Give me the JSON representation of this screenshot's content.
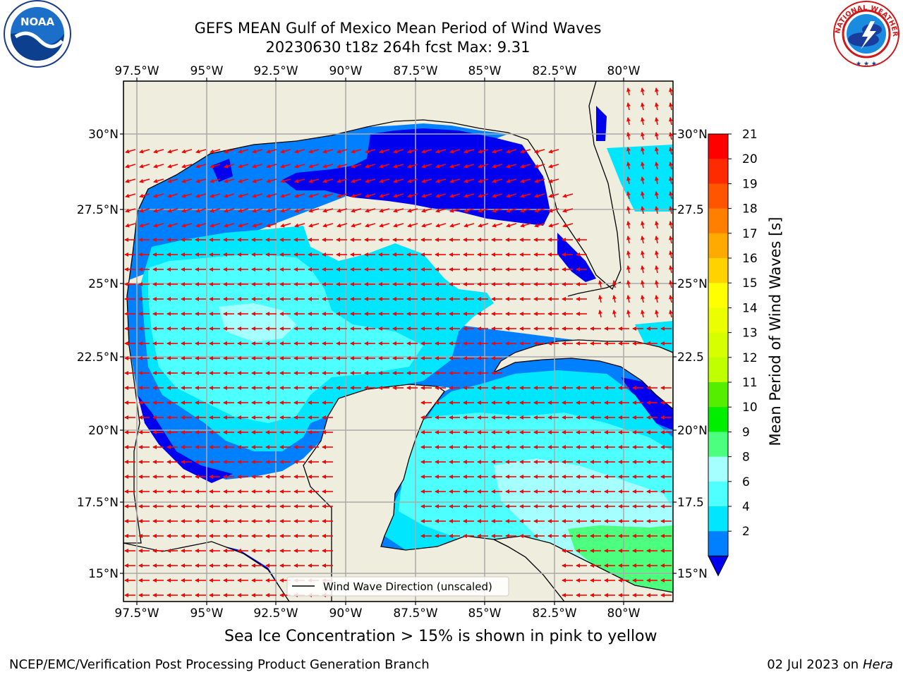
{
  "title": {
    "line1": "GEFS MEAN Gulf of Mexico Mean Period of Wind Waves",
    "line2": "20230630 t18z 264h fcst   Max: 9.31"
  },
  "map": {
    "lon_labels": [
      "97.5°W",
      "95°W",
      "92.5°W",
      "90°W",
      "87.5°W",
      "85°W",
      "82.5°W",
      "80°W"
    ],
    "lat_labels_left": [
      "30°N",
      "27.5°N",
      "25°N",
      "22.5°N",
      "20°N",
      "17.5°N",
      "15°N"
    ],
    "lat_labels_right": [
      "30°N",
      "27.5",
      "25°N",
      "22.5",
      "20°N",
      "17.5",
      "15°N"
    ],
    "legend_label": "Wind Wave Direction (unscaled)",
    "colors": {
      "land": "#efedde",
      "ocean_2_4": "#0080ff",
      "ocean_4_6": "#00e6ff",
      "ocean_6_8": "#4dffff",
      "ocean_8_9": "#a6ffff",
      "ocean_9_10": "#4cff7f",
      "ocean_lt2": "#0000ee",
      "arrow": "#ff0000"
    }
  },
  "colorbar": {
    "label": "Mean Period of Wind Waves [s]",
    "ticks": [
      "21",
      "20",
      "19",
      "18",
      "17",
      "16",
      "15",
      "14",
      "13",
      "12",
      "11",
      "10",
      "9",
      "8",
      "6",
      "4",
      "2"
    ],
    "colors": [
      "#ff0000",
      "#ff2a00",
      "#ff5500",
      "#ff8000",
      "#ffaa00",
      "#ffd200",
      "#ffff00",
      "#ecff00",
      "#d6ff00",
      "#bfff00",
      "#55ee00",
      "#00ee00",
      "#4cff7f",
      "#a6ffff",
      "#4dffff",
      "#00e6ff",
      "#0080ff"
    ],
    "extend_color": "#0000ee"
  },
  "notes": {
    "sea_ice": "Sea Ice Concentration > 15% is shown in pink to yellow"
  },
  "footer": {
    "left": "NCEP/EMC/Verification Post Processing Product Generation Branch",
    "right_prefix": "02 Jul 2023 on ",
    "right_machine": "Hera"
  },
  "logos": {
    "noaa_text": "NOAA",
    "nws_text": "NATIONAL WEATHER SERVICE"
  }
}
